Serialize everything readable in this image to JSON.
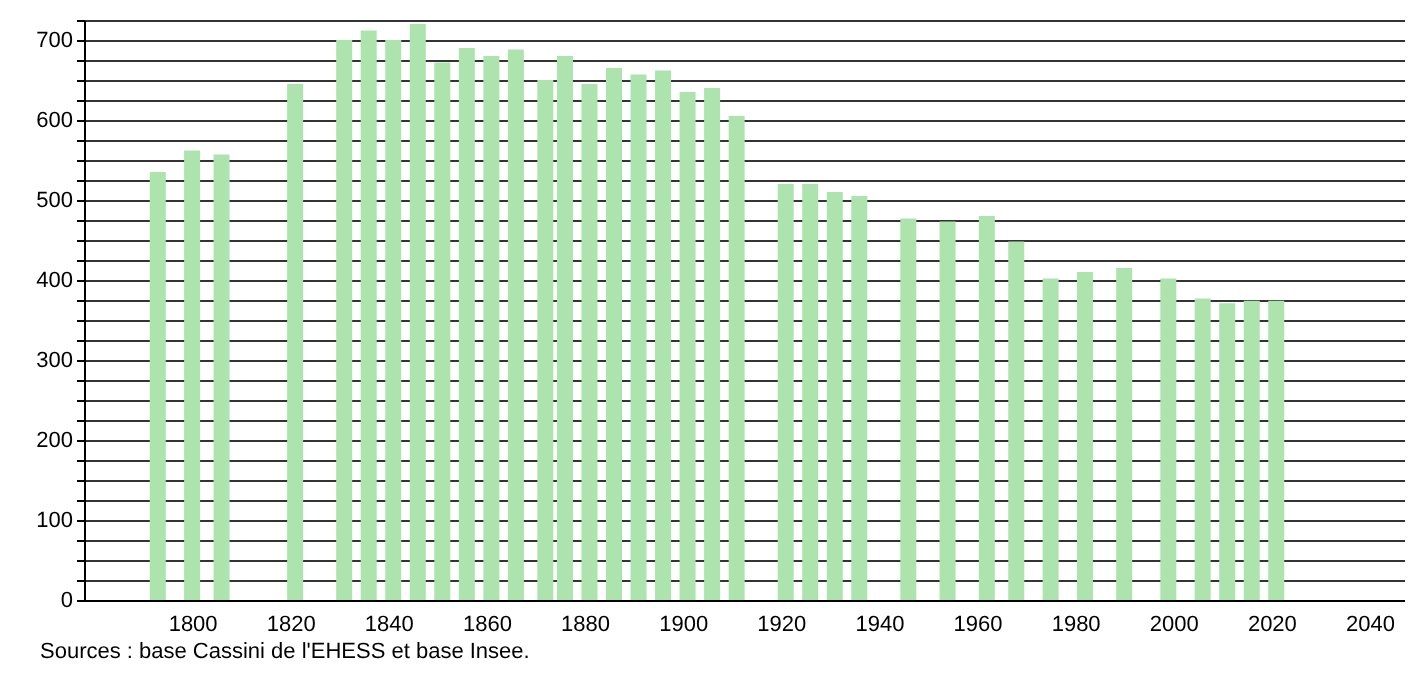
{
  "chart_data": {
    "type": "bar",
    "x": [
      1793,
      1800,
      1806,
      1821,
      1831,
      1836,
      1841,
      1846,
      1851,
      1856,
      1861,
      1866,
      1872,
      1876,
      1881,
      1886,
      1891,
      1896,
      1901,
      1906,
      1911,
      1921,
      1926,
      1931,
      1936,
      1946,
      1954,
      1962,
      1968,
      1975,
      1982,
      1990,
      1999,
      2006,
      2011,
      2016,
      2021
    ],
    "values": [
      535,
      562,
      557,
      645,
      700,
      712,
      700,
      720,
      672,
      690,
      680,
      688,
      650,
      680,
      645,
      665,
      657,
      662,
      635,
      640,
      605,
      520,
      520,
      510,
      505,
      477,
      473,
      480,
      448,
      402,
      410,
      415,
      402,
      377,
      371,
      374,
      374
    ],
    "color": "#ade3ad",
    "xlim": [
      1780,
      2045
    ],
    "xticks": [
      1800,
      1820,
      1840,
      1860,
      1880,
      1900,
      1920,
      1940,
      1960,
      1980,
      2000,
      2020,
      2040
    ],
    "ylim": [
      0,
      725
    ],
    "yticks": [
      0,
      {
        "value": 25,
        "label": null
      },
      {
        "value": 50,
        "label": null
      },
      {
        "value": 75,
        "label": null
      },
      100,
      {
        "value": 125,
        "label": null
      },
      {
        "value": 150,
        "label": null
      },
      {
        "value": 175,
        "label": null
      },
      200,
      {
        "value": 225,
        "label": null
      },
      {
        "value": 250,
        "label": null
      },
      {
        "value": 275,
        "label": null
      },
      300,
      {
        "value": 325,
        "label": null
      },
      {
        "value": 350,
        "label": null
      },
      {
        "value": 375,
        "label": null
      },
      400,
      {
        "value": 425,
        "label": null
      },
      {
        "value": 450,
        "label": null
      },
      {
        "value": 475,
        "label": null
      },
      500,
      {
        "value": 525,
        "label": null
      },
      {
        "value": 550,
        "label": null
      },
      {
        "value": 575,
        "label": null
      },
      600,
      {
        "value": 625,
        "label": null
      },
      {
        "value": 650,
        "label": null
      },
      {
        "value": 675,
        "label": null
      },
      700,
      {
        "value": 725,
        "label": null
      }
    ],
    "grid": "y",
    "annotations": [
      "Sources : base Cassini de l'EHESS et base Insee."
    ]
  }
}
